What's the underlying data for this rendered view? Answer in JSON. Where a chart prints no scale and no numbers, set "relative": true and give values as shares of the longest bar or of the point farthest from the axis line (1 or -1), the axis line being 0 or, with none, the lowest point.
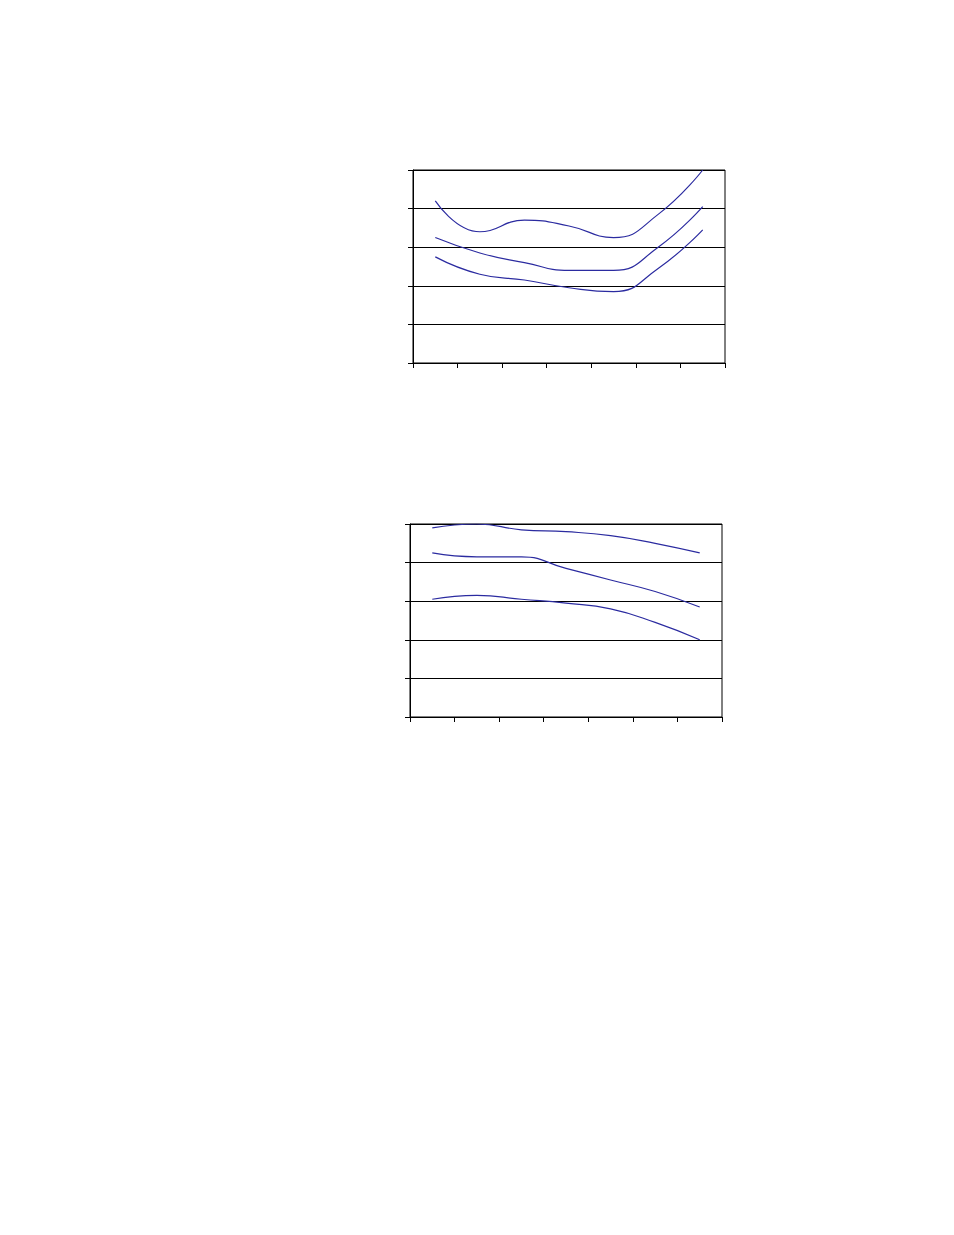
{
  "chart_data": [
    {
      "type": "line",
      "relative": true,
      "grid": "y",
      "marker": "none",
      "categories": [
        null,
        null,
        null,
        null,
        null,
        null,
        null
      ],
      "series": [
        {
          "color": "#2b2ba0",
          "values": [
            0.84,
            0.68,
            0.74,
            0.71,
            0.65,
            0.77,
            1
          ]
        },
        {
          "color": "#2b2ba0",
          "values": [
            0.65,
            0.57,
            0.52,
            0.48,
            0.48,
            0.6,
            0.81
          ]
        },
        {
          "color": "#2b2ba0",
          "values": [
            0.55,
            0.46,
            0.43,
            0.39,
            0.37,
            0.49,
            0.69
          ]
        }
      ]
    },
    {
      "type": "line",
      "relative": true,
      "grid": "y",
      "marker": "none",
      "categories": [
        null,
        null,
        null,
        null,
        null,
        null,
        null
      ],
      "series": [
        {
          "color": "#2b2ba0",
          "values": [
            0.98,
            1,
            0.97,
            0.96,
            0.94,
            0.9,
            0.85
          ]
        },
        {
          "color": "#2b2ba0",
          "values": [
            0.85,
            0.83,
            0.83,
            0.77,
            0.71,
            0.65,
            0.57
          ]
        },
        {
          "color": "#2b2ba0",
          "values": [
            0.61,
            0.63,
            0.61,
            0.59,
            0.56,
            0.49,
            0.4
          ]
        }
      ]
    }
  ]
}
